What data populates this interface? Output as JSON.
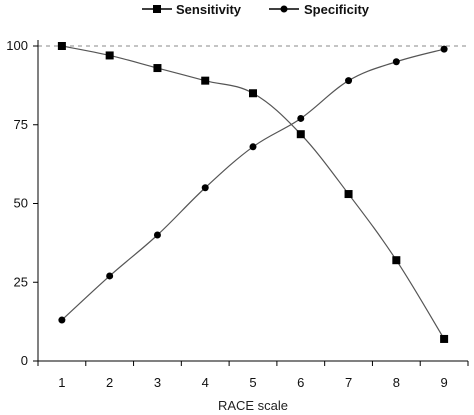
{
  "chart_data": {
    "type": "line",
    "xlabel": "RACE scale",
    "ylabel": "",
    "x": [
      1,
      2,
      3,
      4,
      5,
      6,
      7,
      8,
      9
    ],
    "xlim": [
      0.5,
      9.5
    ],
    "ylim": [
      0,
      100
    ],
    "yticks": [
      0,
      25,
      50,
      75,
      100
    ],
    "reference_line": {
      "y": 100,
      "style": "dashed"
    },
    "grid": false,
    "legend_position": "top-center",
    "series": [
      {
        "name": "Sensitivity",
        "marker": "square",
        "values": [
          100,
          97,
          93,
          89,
          85,
          72,
          53,
          32,
          7
        ]
      },
      {
        "name": "Specificity",
        "marker": "circle",
        "values": [
          13,
          27,
          40,
          55,
          68,
          77,
          89,
          95,
          99
        ]
      }
    ],
    "colors": {
      "line": "#555555",
      "marker": "#000000",
      "axis": "#000000",
      "reference": "#888888"
    }
  }
}
